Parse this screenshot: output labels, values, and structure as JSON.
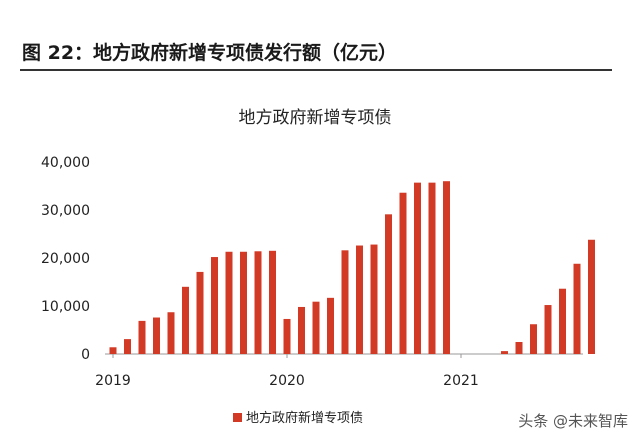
{
  "figure": {
    "caption": "图 22：地方政府新增专项债发行额（亿元）"
  },
  "watermark": "头条 @未来智库",
  "colors": {
    "bar": "#d33a26",
    "axis": "#999999",
    "text": "#222222"
  },
  "chart_data": {
    "type": "bar",
    "title": "地方政府新增专项债",
    "xlabel": "",
    "ylabel": "",
    "ylim": [
      0,
      40000
    ],
    "y_ticks": [
      "0",
      "10,000",
      "20,000",
      "30,000",
      "40,000"
    ],
    "x_tick_labels": [
      "2019",
      "2020",
      "2021"
    ],
    "grid": false,
    "legend_position": "bottom-center",
    "series": [
      {
        "name": "地方政府新增专项债",
        "values": [
          1400,
          3100,
          6900,
          7600,
          8700,
          14000,
          17100,
          20200,
          21300,
          21300,
          21400,
          21500,
          7300,
          9800,
          10900,
          11700,
          21600,
          22600,
          22800,
          29100,
          33600,
          35700,
          35700,
          36000,
          0,
          0,
          0,
          600,
          2500,
          6200,
          10200,
          13600,
          18800,
          23800
        ]
      }
    ]
  }
}
